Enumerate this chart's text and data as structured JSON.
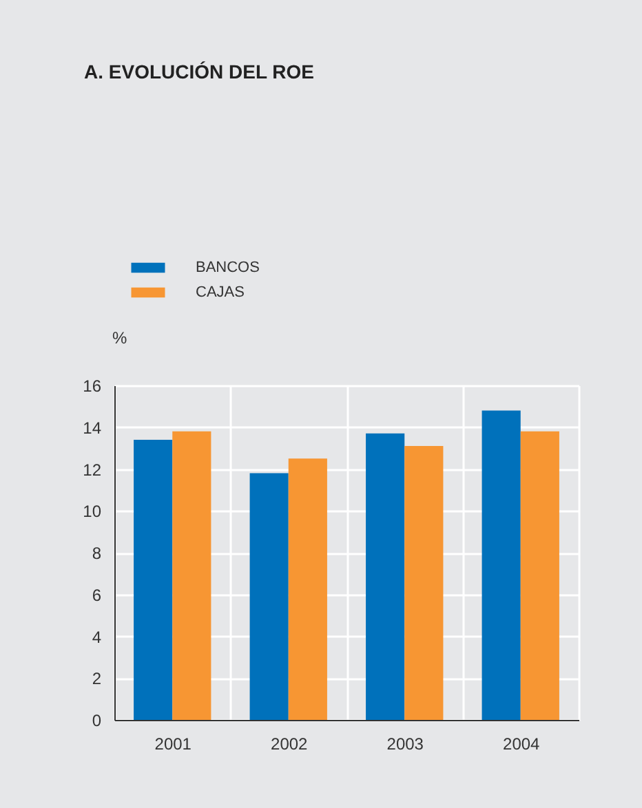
{
  "chart_data": {
    "type": "bar",
    "title": "A. EVOLUCIÓN DEL ROE",
    "ylabel": "%",
    "categories": [
      "2001",
      "2002",
      "2003",
      "2004"
    ],
    "series": [
      {
        "name": "BANCOS",
        "color": "#0071bb",
        "values": [
          13.4,
          11.8,
          13.7,
          14.8
        ]
      },
      {
        "name": "CAJAS",
        "color": "#f79633",
        "values": [
          13.8,
          12.5,
          13.1,
          13.8
        ]
      }
    ],
    "ylim": [
      0,
      16
    ],
    "yticks": [
      0,
      2,
      4,
      6,
      8,
      10,
      12,
      14,
      16
    ],
    "grid": true,
    "legend": "top left"
  }
}
